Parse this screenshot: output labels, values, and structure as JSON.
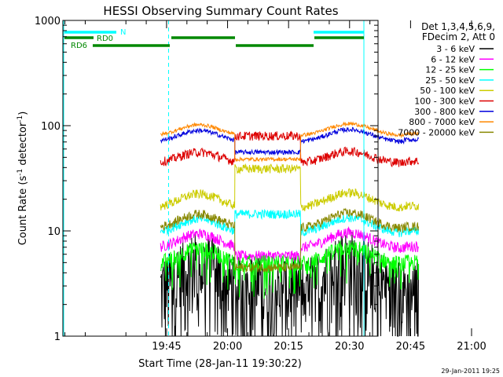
{
  "chart_data": {
    "type": "line",
    "title": "HESSI Observing Summary Count Rates",
    "xlabel": "Start Time (28-Jan-11 19:30:22)",
    "ylabel_main": "Count Rate (s",
    "ylabel_sup1": "-1",
    "ylabel_mid": " detector",
    "ylabel_sup2": "-1",
    "ylabel_end": ")",
    "y_scale": "log",
    "ylim": [
      1,
      1000
    ],
    "xlim_minutes": [
      19.5,
      97
    ],
    "x_ticks": [
      {
        "label": "19:45",
        "t": 45
      },
      {
        "label": "20:00",
        "t": 60
      },
      {
        "label": "20:15",
        "t": 75
      },
      {
        "label": "20:30",
        "t": 90
      },
      {
        "label": "20:45",
        "t": 105
      },
      {
        "label": "21:00",
        "t": 120
      }
    ],
    "y_ticks": [
      {
        "label": "1",
        "v": 1
      },
      {
        "label": "10",
        "v": 10
      },
      {
        "label": "100",
        "v": 100
      },
      {
        "label": "1000",
        "v": 1000
      }
    ],
    "legend_header": [
      "Det 1,3,4,5,6,9,",
      "FDecim 2, Att 0"
    ],
    "series": [
      {
        "name": "3 - 6 keV",
        "color": "#000000"
      },
      {
        "name": "6 - 12 keV",
        "color": "#ff00ff"
      },
      {
        "name": "12 - 25 keV",
        "color": "#00ff00"
      },
      {
        "name": "25 - 50 keV",
        "color": "#00ffff"
      },
      {
        "name": "50 - 100 keV",
        "color": "#cccc00"
      },
      {
        "name": "100 - 300 keV",
        "color": "#dd0000"
      },
      {
        "name": "300 - 800 keV",
        "color": "#0000dd"
      },
      {
        "name": "800 - 7000 keV",
        "color": "#ff8800"
      },
      {
        "name": "7000 - 20000 keV",
        "color": "#888800"
      }
    ],
    "flags": [
      {
        "name": "N",
        "color": "#00ffff"
      },
      {
        "name": "RD0",
        "color": "#008800"
      },
      {
        "name": "RD6",
        "color": "#008800"
      }
    ],
    "timestamp": "29-Jan-2011 19:25"
  }
}
